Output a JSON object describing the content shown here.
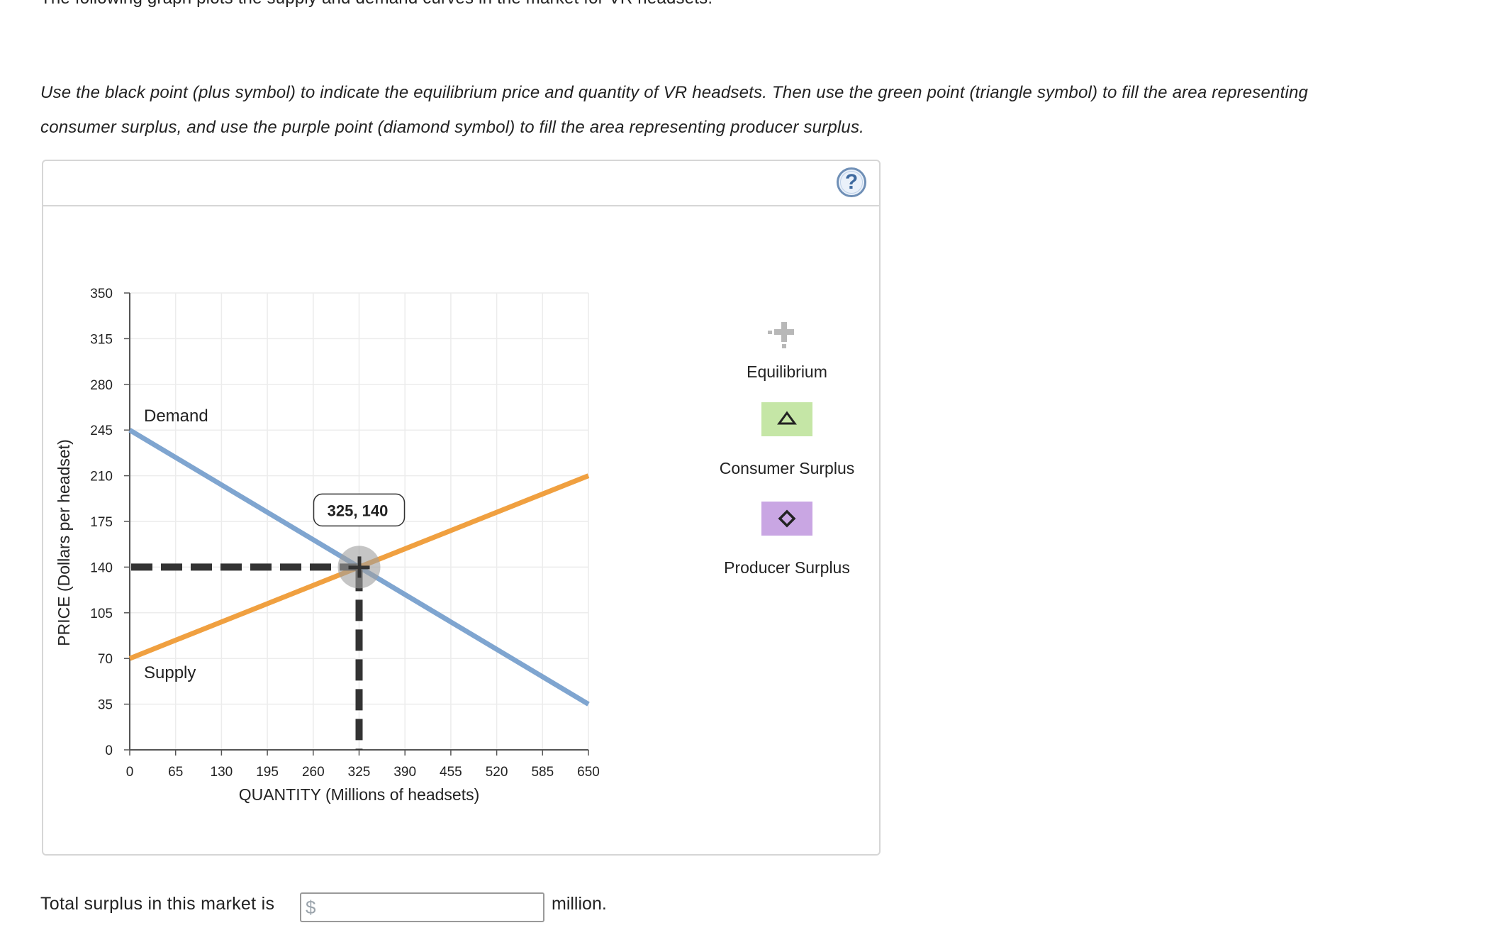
{
  "intro": "The following graph plots the supply and demand curves in the market for VR headsets.",
  "instructions": "Use the black point (plus symbol) to indicate the equilibrium price and quantity of VR headsets. Then use the green point (triangle symbol) to fill the area representing consumer surplus, and use the purple point (diamond symbol) to fill the area representing producer surplus.",
  "help_label": "?",
  "legend": {
    "equilibrium": "Equilibrium",
    "consumer_surplus": "Consumer Surplus",
    "producer_surplus": "Producer Surplus",
    "consumer_color": "#c5e6a6",
    "producer_color": "#c9a6e3"
  },
  "answer": {
    "prefix": "Total surplus in this market is",
    "currency": "$",
    "value": "",
    "suffix": "million."
  },
  "chart_data": {
    "type": "line",
    "xlabel": "QUANTITY (Millions of headsets)",
    "ylabel": "PRICE (Dollars per headset)",
    "xlim": [
      0,
      650
    ],
    "ylim": [
      0,
      350
    ],
    "xticks": [
      0,
      65,
      130,
      195,
      260,
      325,
      390,
      455,
      520,
      585,
      650
    ],
    "yticks": [
      0,
      35,
      70,
      105,
      140,
      175,
      210,
      245,
      280,
      315,
      350
    ],
    "grid": true,
    "series": [
      {
        "name": "Demand",
        "color": "#7fa5d0",
        "points": [
          [
            0,
            245
          ],
          [
            650,
            35
          ]
        ]
      },
      {
        "name": "Supply",
        "color": "#f0a040",
        "points": [
          [
            0,
            70
          ],
          [
            650,
            210
          ]
        ]
      }
    ],
    "equilibrium": {
      "x": 325,
      "y": 140,
      "label": "325, 140"
    }
  }
}
